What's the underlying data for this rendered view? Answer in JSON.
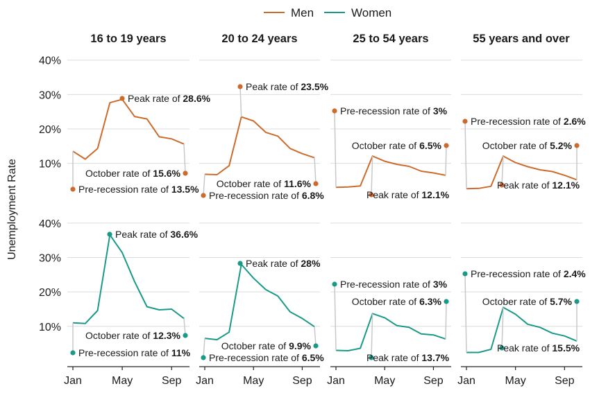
{
  "colors": {
    "men": "#cc6b2c",
    "women": "#1a9a86",
    "grid": "#dcdcdc",
    "text": "#1a1a1a",
    "connector": "#c8c8c8"
  },
  "chart_data": {
    "type": "line",
    "ylabel": "Unemployment Rate",
    "y_ticks": [
      "10%",
      "20%",
      "30%",
      "40%"
    ],
    "ylim": [
      0,
      40
    ],
    "x_ticks": [
      "Jan",
      "May",
      "Sep"
    ],
    "legend": {
      "position": "top",
      "entries": [
        "Men",
        "Women"
      ]
    },
    "panels": [
      "16 to 19 years",
      "20 to 24 years",
      "25 to 54 years",
      "55 years and over"
    ],
    "x": [
      "Jan",
      "Feb",
      "Mar",
      "Apr",
      "May",
      "Jun",
      "Jul",
      "Aug",
      "Sep",
      "Oct"
    ],
    "series": [
      {
        "name": "Men",
        "values": [
          [
            13.5,
            11.2,
            14.3,
            27.6,
            28.6,
            23.6,
            22.9,
            17.7,
            17.1,
            15.6
          ],
          [
            6.8,
            6.7,
            9.3,
            23.5,
            22.3,
            19.0,
            17.9,
            14.3,
            12.8,
            11.6
          ],
          [
            3.0,
            3.1,
            3.4,
            12.1,
            10.6,
            9.7,
            9.1,
            7.7,
            7.2,
            6.5
          ],
          [
            2.6,
            2.7,
            3.3,
            12.1,
            10.2,
            9.0,
            8.1,
            7.6,
            6.5,
            5.2
          ]
        ]
      },
      {
        "name": "Women",
        "values": [
          [
            11.0,
            10.8,
            14.6,
            36.6,
            31.4,
            23.0,
            15.7,
            14.8,
            15.0,
            12.3
          ],
          [
            6.5,
            6.1,
            8.3,
            28.0,
            24.0,
            20.7,
            18.8,
            14.2,
            12.3,
            9.9
          ],
          [
            3.0,
            2.9,
            3.6,
            13.7,
            12.5,
            10.2,
            9.7,
            7.8,
            7.5,
            6.3
          ],
          [
            2.4,
            2.4,
            3.3,
            15.5,
            13.5,
            10.6,
            9.7,
            8.0,
            7.2,
            5.7
          ]
        ]
      }
    ],
    "annotations": {
      "men": [
        {
          "pre_prefix": "Pre-recession rate of ",
          "pre_value": "13.5%",
          "peak_prefix": "Peak rate of ",
          "peak_value": "28.6%",
          "oct_prefix": "October rate of ",
          "oct_value": "15.6%"
        },
        {
          "pre_prefix": "Pre-recession rate of ",
          "pre_value": "6.8%",
          "peak_prefix": "Peak rate of ",
          "peak_value": "23.5%",
          "oct_prefix": "October rate of ",
          "oct_value": "11.6%"
        },
        {
          "pre_prefix": "Pre-recession rate of ",
          "pre_value": "3%",
          "peak_prefix": "Peak rate of ",
          "peak_value": "12.1%",
          "oct_prefix": "October rate of ",
          "oct_value": "6.5%"
        },
        {
          "pre_prefix": "Pre-recession rate of ",
          "pre_value": "2.6%",
          "peak_prefix": "Peak rate of ",
          "peak_value": "12.1%",
          "oct_prefix": "October rate of ",
          "oct_value": "5.2%"
        }
      ],
      "women": [
        {
          "pre_prefix": "Pre-recession rate of ",
          "pre_value": "11%",
          "peak_prefix": "Peak rate of ",
          "peak_value": "36.6%",
          "oct_prefix": "October rate of ",
          "oct_value": "12.3%"
        },
        {
          "pre_prefix": "Pre-recession rate of ",
          "pre_value": "6.5%",
          "peak_prefix": "Peak rate of ",
          "peak_value": "28%",
          "oct_prefix": "October rate of ",
          "oct_value": "9.9%"
        },
        {
          "pre_prefix": "Pre-recession rate of ",
          "pre_value": "3%",
          "peak_prefix": "Peak rate of ",
          "peak_value": "13.7%",
          "oct_prefix": "October rate of ",
          "oct_value": "6.3%"
        },
        {
          "pre_prefix": "Pre-recession rate of ",
          "pre_value": "2.4%",
          "peak_prefix": "Peak rate of ",
          "peak_value": "15.5%",
          "oct_prefix": "October rate of ",
          "oct_value": "5.7%"
        }
      ]
    }
  }
}
